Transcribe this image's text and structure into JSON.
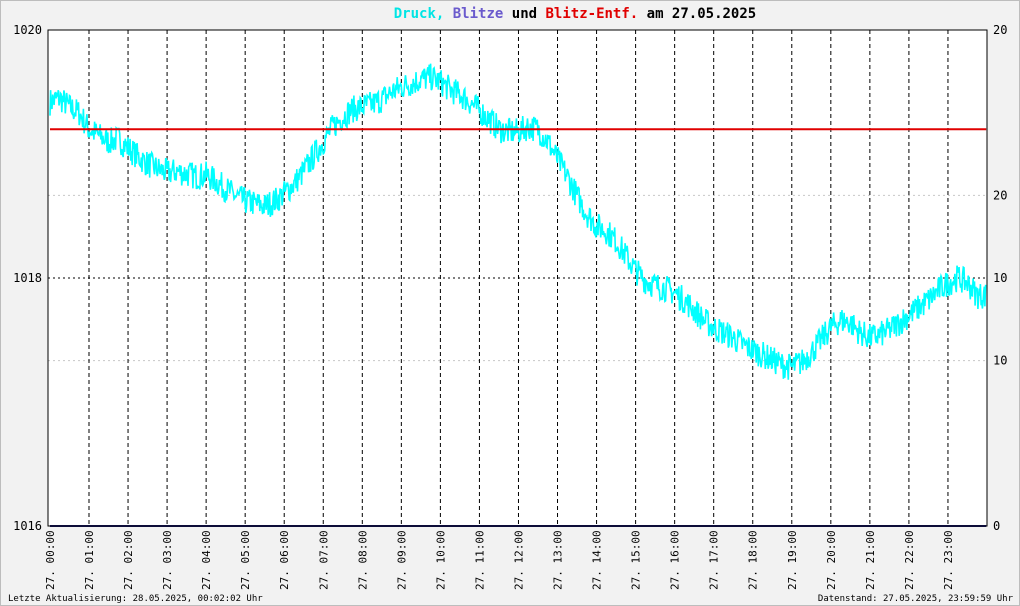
{
  "chart_data": {
    "type": "line",
    "title_parts": [
      {
        "text": "Druck,",
        "color": "#00e5e5"
      },
      {
        "text": "Blitze",
        "color": "#6a5acd"
      },
      {
        "text": "und",
        "color": "#000000"
      },
      {
        "text": "Blitz-Entf.",
        "color": "#e00000"
      },
      {
        "text": "am 27.05.2025",
        "color": "#000000"
      }
    ],
    "left_axis": {
      "range": [
        1016,
        1020
      ],
      "ticks": [
        {
          "value": 1016,
          "label": "1016"
        },
        {
          "value": 1018,
          "label": "1018"
        },
        {
          "value": 1020,
          "label": "1020"
        }
      ]
    },
    "right_axis": {
      "range": [
        0,
        30
      ],
      "ticks_black": [
        {
          "value": 0,
          "label": "0"
        },
        {
          "value": 15,
          "label": "10"
        },
        {
          "value": 30,
          "label": "20"
        }
      ],
      "ticks_red": [
        {
          "value": 10,
          "label": "10"
        },
        {
          "value": 20,
          "label": "20"
        }
      ]
    },
    "x_ticks": [
      "27. 00:00",
      "27. 01:00",
      "27. 02:00",
      "27. 03:00",
      "27. 04:00",
      "27. 05:00",
      "27. 06:00",
      "27. 07:00",
      "27. 08:00",
      "27. 09:00",
      "27. 10:00",
      "27. 11:00",
      "27. 12:00",
      "27. 13:00",
      "27. 14:00",
      "27. 15:00",
      "27. 16:00",
      "27. 17:00",
      "27. 18:00",
      "27. 19:00",
      "27. 20:00",
      "27. 21:00",
      "27. 22:00",
      "27. 23:00"
    ],
    "series": [
      {
        "name": "Druck",
        "color": "#00ffff",
        "unit_hours": true,
        "x": [
          0,
          0.25,
          0.5,
          0.75,
          1.0,
          1.25,
          1.5,
          1.75,
          2.0,
          2.25,
          2.5,
          2.75,
          3.0,
          3.25,
          3.5,
          3.75,
          4.0,
          4.25,
          4.5,
          4.75,
          5.0,
          5.25,
          5.5,
          5.75,
          6.0,
          6.25,
          6.5,
          6.75,
          7.0,
          7.25,
          7.5,
          7.75,
          8.0,
          8.25,
          8.5,
          8.75,
          9.0,
          9.25,
          9.5,
          9.75,
          10.0,
          10.25,
          10.5,
          10.75,
          11.0,
          11.25,
          11.5,
          11.75,
          12.0,
          12.25,
          12.5,
          12.75,
          13.0,
          13.25,
          13.5,
          13.75,
          14.0,
          14.25,
          14.5,
          14.75,
          15.0,
          15.25,
          15.5,
          15.75,
          16.0,
          16.25,
          16.5,
          16.75,
          17.0,
          17.25,
          17.5,
          17.75,
          18.0,
          18.25,
          18.5,
          18.75,
          19.0,
          19.25,
          19.5,
          19.75,
          20.0,
          20.25,
          20.5,
          20.75,
          21.0,
          21.25,
          21.5,
          21.75,
          22.0,
          22.25,
          22.5,
          22.75,
          23.0,
          23.25,
          23.5,
          23.75
        ],
        "y": [
          1019.42,
          1019.45,
          1019.38,
          1019.33,
          1019.2,
          1019.15,
          1019.1,
          1019.12,
          1019.05,
          1018.98,
          1018.92,
          1018.88,
          1018.85,
          1018.86,
          1018.84,
          1018.82,
          1018.83,
          1018.78,
          1018.72,
          1018.66,
          1018.62,
          1018.6,
          1018.58,
          1018.62,
          1018.68,
          1018.76,
          1018.86,
          1018.98,
          1019.1,
          1019.22,
          1019.3,
          1019.36,
          1019.38,
          1019.4,
          1019.44,
          1019.5,
          1019.54,
          1019.57,
          1019.6,
          1019.62,
          1019.58,
          1019.52,
          1019.48,
          1019.42,
          1019.35,
          1019.28,
          1019.2,
          1019.18,
          1019.18,
          1019.22,
          1019.2,
          1019.1,
          1018.96,
          1018.82,
          1018.66,
          1018.52,
          1018.42,
          1018.38,
          1018.3,
          1018.18,
          1018.06,
          1017.98,
          1017.94,
          1017.92,
          1017.88,
          1017.82,
          1017.74,
          1017.66,
          1017.6,
          1017.56,
          1017.52,
          1017.46,
          1017.42,
          1017.38,
          1017.34,
          1017.3,
          1017.28,
          1017.32,
          1017.4,
          1017.5,
          1017.6,
          1017.66,
          1017.64,
          1017.56,
          1017.52,
          1017.54,
          1017.58,
          1017.64,
          1017.7,
          1017.76,
          1017.82,
          1017.9,
          1017.96,
          1018.0,
          1017.96,
          1017.86
        ]
      },
      {
        "name": "Blitze",
        "color": "#191970",
        "axis": "right",
        "x": [
          0,
          23.98
        ],
        "y": [
          0,
          0
        ]
      },
      {
        "name": "Blitz-Entf.",
        "color": "#e00000",
        "axis": "right",
        "x": [
          0,
          23.98
        ],
        "y": [
          24,
          24
        ]
      }
    ],
    "xlim": [
      -0.05,
      24
    ],
    "grid": true
  },
  "footer": {
    "left": "Letzte Aktualisierung: 28.05.2025, 00:02:02 Uhr",
    "right": "Datenstand: 27.05.2025, 23:59:59 Uhr"
  }
}
